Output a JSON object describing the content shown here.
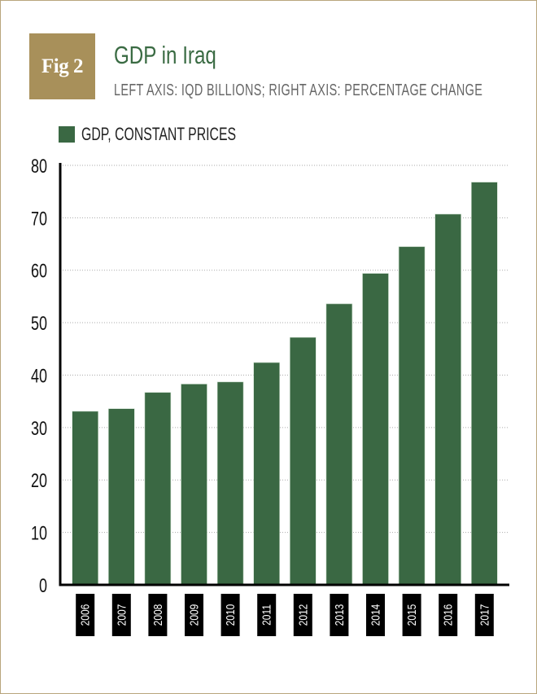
{
  "badge": "Fig 2",
  "title": "GDP in Iraq",
  "subtitle": "LEFT AXIS: IQD BILLIONS; RIGHT AXIS: PERCENTAGE CHANGE",
  "colors": {
    "bar": "#3a6843",
    "badge": "#a8905a",
    "title": "#3a6b43"
  },
  "chart_data": {
    "type": "bar",
    "categories": [
      "2006",
      "2007",
      "2008",
      "2009",
      "2010",
      "2011",
      "2012",
      "2013",
      "2014",
      "2015",
      "2016",
      "2017"
    ],
    "series": [
      {
        "name": "GDP, CONSTANT PRICES",
        "values": [
          33.1,
          33.6,
          36.7,
          38.3,
          38.7,
          42.4,
          47.2,
          53.6,
          59.4,
          64.5,
          70.7,
          76.8
        ]
      }
    ],
    "yticks": [
      "0",
      "10",
      "20",
      "30",
      "40",
      "50",
      "60",
      "70",
      "80"
    ],
    "ylim": [
      0,
      80
    ],
    "grid": true,
    "legend": "top-left"
  }
}
